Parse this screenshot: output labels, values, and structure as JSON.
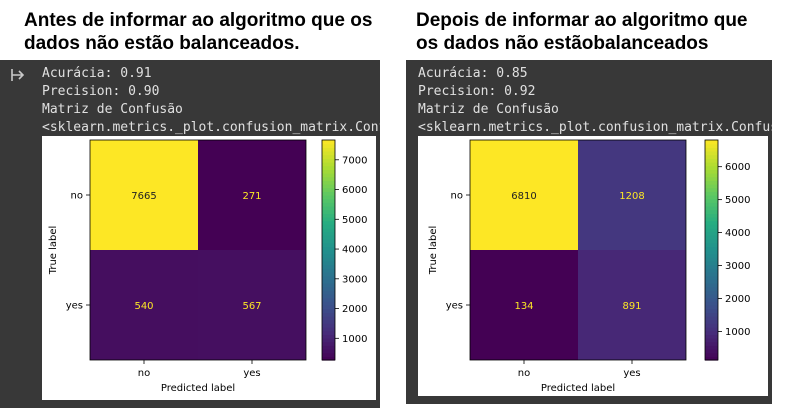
{
  "panels": [
    {
      "title_line1": "Antes de informar ao algoritmo que os",
      "title_line2": "dados não estão balanceados.",
      "console": {
        "line1": "Acurácia: 0.91",
        "line2": "Precision: 0.90",
        "line3": "Matriz de Confusão",
        "line4": "<sklearn.metrics._plot.confusion_matrix.Conf"
      }
    },
    {
      "title_line1": "Depois de informar ao algoritmo que",
      "title_line2": "os dados não estãobalanceados",
      "console": {
        "line1": "Acurácia: 0.85",
        "line2": "Precision: 0.92",
        "line3": "Matriz de Confusão",
        "line4": "<sklearn.metrics._plot.confusion_matrix.Confus"
      }
    }
  ],
  "colors": {
    "console_bg": "#383838",
    "console_text": "#e0e0e0",
    "viridis_low": "#440154",
    "viridis_high": "#fde725"
  },
  "chart_data": [
    {
      "type": "heatmap",
      "colormap": "viridis",
      "xlabel": "Predicted label",
      "ylabel": "True label",
      "x_categories": [
        "no",
        "yes"
      ],
      "y_categories": [
        "no",
        "yes"
      ],
      "values": [
        [
          7665,
          271
        ],
        [
          540,
          567
        ]
      ],
      "value_labels": [
        [
          "7665",
          "271"
        ],
        [
          "540",
          "567"
        ]
      ],
      "vmin": 271,
      "vmax": 7665,
      "colorbar_ticks": [
        1000,
        2000,
        3000,
        4000,
        5000,
        6000,
        7000
      ],
      "colorbar_tick_labels": [
        "1000",
        "2000",
        "3000",
        "4000",
        "5000",
        "6000",
        "7000"
      ]
    },
    {
      "type": "heatmap",
      "colormap": "viridis",
      "xlabel": "Predicted label",
      "ylabel": "True label",
      "x_categories": [
        "no",
        "yes"
      ],
      "y_categories": [
        "no",
        "yes"
      ],
      "values": [
        [
          6810,
          1208
        ],
        [
          134,
          891
        ]
      ],
      "value_labels": [
        [
          "6810",
          "1208"
        ],
        [
          "134",
          "891"
        ]
      ],
      "vmin": 134,
      "vmax": 6810,
      "colorbar_ticks": [
        1000,
        2000,
        3000,
        4000,
        5000,
        6000
      ],
      "colorbar_tick_labels": [
        "1000",
        "2000",
        "3000",
        "4000",
        "5000",
        "6000"
      ]
    }
  ]
}
